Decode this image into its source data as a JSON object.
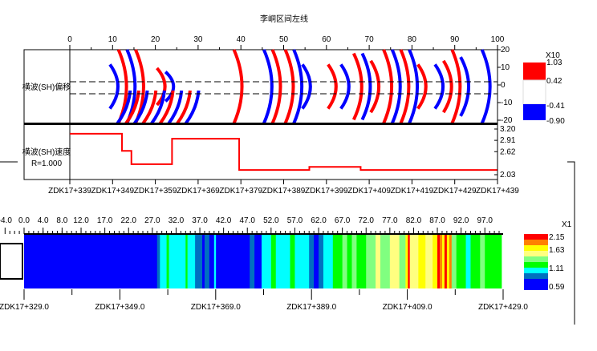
{
  "chart_data": [
    {
      "type": "heatmap",
      "title": "李峒区间左线",
      "panel_label": "横波(SH)偏移",
      "x_ticks": [
        0,
        10,
        20,
        30,
        40,
        50,
        60,
        70,
        80,
        90,
        100
      ],
      "y_ticks": [
        20,
        10,
        0,
        -10,
        -20
      ],
      "xlim": [
        0,
        100
      ],
      "ylim": [
        -20,
        20
      ],
      "legend": {
        "title": "X10",
        "labels": [
          "1.03",
          "0.42",
          "-0.41",
          "-0.90"
        ],
        "colors": [
          "#ff0000",
          "#ffffff",
          "#0000ff"
        ]
      }
    },
    {
      "type": "line",
      "panel_label": "横波(SH)速度",
      "panel_sublabel": "R=1.000",
      "y_ticks": [
        "3.20",
        "2.91",
        "2.62",
        "2.03"
      ],
      "ylim": [
        2.03,
        3.2
      ],
      "x_labels": [
        "ZDK17+339",
        "ZDK17+349",
        "ZDK17+359",
        "ZDK17+369",
        "ZDK17+379",
        "ZDK17+389",
        "ZDK17+399",
        "ZDK17+409",
        "ZDK17+419",
        "ZDK17+429",
        "ZDK17+439"
      ],
      "steps": [
        [
          0,
          12.2,
          3.08
        ],
        [
          12.2,
          14.4,
          2.64
        ],
        [
          14.4,
          23.9,
          2.3
        ],
        [
          23.9,
          39.6,
          2.95
        ],
        [
          39.6,
          56,
          2.15
        ],
        [
          56,
          68,
          2.23
        ],
        [
          68,
          100,
          2.15
        ]
      ],
      "color": "#ff0000"
    },
    {
      "type": "heatmap",
      "x_ticks": [
        "-4.0",
        "0.0",
        "4.0",
        "8.0",
        "12.0",
        "17.0",
        "22.0",
        "27.0",
        "32.0",
        "37.0",
        "42.0",
        "47.0",
        "52.0",
        "57.0",
        "62.0",
        "67.0",
        "72.0",
        "77.0",
        "82.0",
        "87.0",
        "92.0",
        "97.0"
      ],
      "x_labels": [
        "ZDK17+329.0",
        "ZDK17+349.0",
        "ZDK17+369.0",
        "ZDK17+389.0",
        "ZDK17+409.0",
        "ZDK17+429.0"
      ],
      "legend": {
        "title": "X1",
        "labels": [
          "2.15",
          "1.63",
          "1.11",
          "0.59"
        ],
        "colors": [
          "#ff0000",
          "#ff8000",
          "#ffff00",
          "#ffff80",
          "#80ff80",
          "#00ff00",
          "#00ffff",
          "#0070c0",
          "#0000ff"
        ]
      },
      "level_colors": [
        "#0000ff",
        "#0070c0",
        "#00ffff",
        "#00ff00",
        "#80ff80",
        "#ffff80",
        "#ffff00",
        "#ff8000",
        "#ff0000"
      ],
      "segments": [
        [
          0,
          28,
          0
        ],
        [
          28,
          28.6,
          1
        ],
        [
          28.6,
          30,
          2
        ],
        [
          30,
          30.5,
          3
        ],
        [
          30.5,
          34,
          2
        ],
        [
          34,
          34.4,
          3
        ],
        [
          34.4,
          36,
          2
        ],
        [
          36,
          37.5,
          1
        ],
        [
          37.5,
          38,
          0
        ],
        [
          38,
          39,
          1
        ],
        [
          39,
          40,
          0
        ],
        [
          40,
          40.4,
          2
        ],
        [
          40.4,
          47.5,
          0
        ],
        [
          47.5,
          48.5,
          1
        ],
        [
          48.5,
          50,
          0
        ],
        [
          50,
          52,
          2
        ],
        [
          52,
          53,
          3
        ],
        [
          53,
          56,
          2
        ],
        [
          56,
          57,
          3
        ],
        [
          57,
          60,
          2
        ],
        [
          60,
          61,
          1
        ],
        [
          61,
          62,
          0
        ],
        [
          62,
          63,
          1
        ],
        [
          63,
          65,
          2
        ],
        [
          65,
          67,
          3
        ],
        [
          67,
          68,
          4
        ],
        [
          68,
          69,
          3
        ],
        [
          69,
          70,
          4
        ],
        [
          70,
          72,
          3
        ],
        [
          72,
          74,
          4
        ],
        [
          74,
          75,
          5
        ],
        [
          75,
          77,
          4
        ],
        [
          77,
          79,
          5
        ],
        [
          79,
          80.3,
          4
        ],
        [
          80.3,
          80.8,
          6
        ],
        [
          80.8,
          81.2,
          8
        ],
        [
          81.2,
          83,
          5
        ],
        [
          83,
          84.5,
          6
        ],
        [
          84.5,
          86,
          5
        ],
        [
          86,
          87,
          6
        ],
        [
          87,
          87.5,
          8
        ],
        [
          87.5,
          88,
          7
        ],
        [
          88,
          88.5,
          6
        ],
        [
          88.5,
          89,
          8
        ],
        [
          89,
          89.5,
          6
        ],
        [
          89.5,
          90,
          7
        ],
        [
          90,
          91,
          4
        ],
        [
          91,
          93,
          3
        ],
        [
          93,
          94,
          2
        ],
        [
          94,
          96,
          3
        ],
        [
          96,
          97,
          4
        ],
        [
          97,
          100.5,
          3
        ]
      ]
    }
  ]
}
